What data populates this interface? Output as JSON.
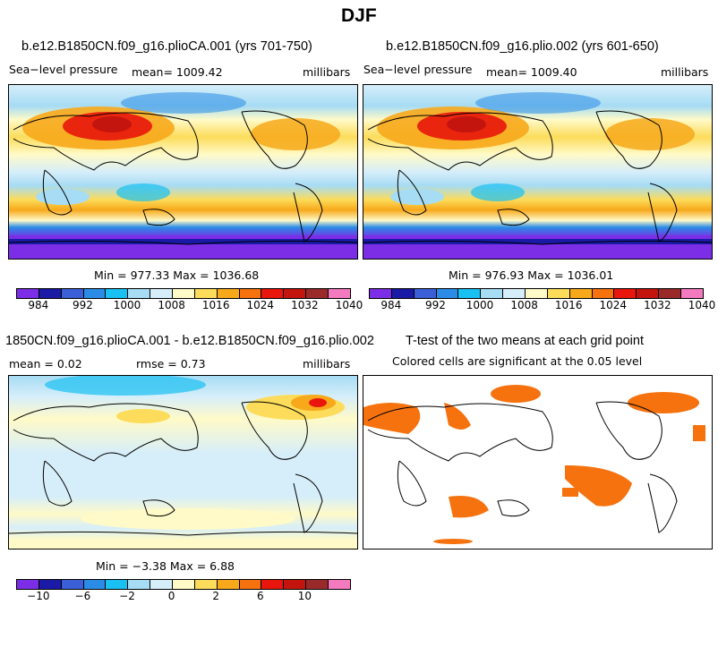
{
  "page": {
    "title": "DJF"
  },
  "panels": [
    {
      "title": "b.e12.B1850CN.f09_g16.plioCA.001 (yrs 701-750)",
      "variable": "Sea−level pressure",
      "mean": "mean=  1009.42",
      "units": "millibars",
      "minmax": "Min = 977.33 Max = 1036.68"
    },
    {
      "title": "b.e12.B1850CN.f09_g16.plio.002 (yrs 601-650)",
      "variable": "Sea−level pressure",
      "mean": "mean=  1009.40",
      "units": "millibars",
      "minmax": "Min = 976.93 Max = 1036.01"
    },
    {
      "title": "1850CN.f09_g16.plioCA.001 - b.e12.B1850CN.f09_g16.plio.002",
      "mean": "mean =    0.02",
      "rmse": "rmse =    0.73",
      "units": "millibars",
      "minmax": "Min =  −3.38 Max =    6.88"
    },
    {
      "title": "T-test of the two means at each grid point",
      "subtitle": "Colored cells are significant at the 0.05 level"
    }
  ],
  "colorbars": {
    "colors": [
      "#7b2ee6",
      "#1a1aa6",
      "#3a5fd6",
      "#2a8ce6",
      "#19c0f2",
      "#a6dcf4",
      "#d6eefa",
      "#fffac8",
      "#fcdc5a",
      "#f7a91b",
      "#f5720e",
      "#e8160c",
      "#c4140e",
      "#9a2a2a",
      "#f47ac0"
    ],
    "absolute_ticks": [
      "984",
      "992",
      "1000",
      "1008",
      "1016",
      "1024",
      "1032",
      "1040"
    ],
    "diff_ticks": [
      "−10",
      "−6",
      "−2",
      "0",
      "2",
      "6",
      "10"
    ]
  }
}
